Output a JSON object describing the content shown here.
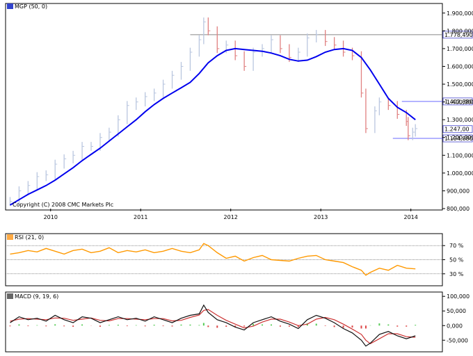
{
  "panels": {
    "price": {
      "title": "MGP (50, 0)",
      "copyright": "Copyright (C) 2008 CMC Markets Plc"
    },
    "rsi": {
      "title": "RSI (21, 0)"
    },
    "macd": {
      "title": "MACD (9, 19, 6)"
    }
  },
  "chart_data": [
    {
      "type": "line",
      "subtype": "price bars with moving average",
      "title": "MGP (50, 0)",
      "annotation": "Copyright (C) 2008 CMC Markets Plc",
      "x_tick_labels": [
        "2010",
        "2011",
        "2012",
        "2013",
        "2014"
      ],
      "y_tick_labels": [
        "1.900,000",
        "1.800,000",
        "1.700,000",
        "1.600,000",
        "1.500,000",
        "1.400,000",
        "1.300,000",
        "1.200,000",
        "1.100,000",
        "1.000,000",
        "900,000",
        "800,000"
      ],
      "ylim": [
        800,
        1950
      ],
      "y_scale": 1000,
      "grid": false,
      "colors": {
        "bars": "#b9c6df",
        "bars_down": "#e08080",
        "ma": "#0000ee",
        "hline": "#888888",
        "hline_blue": "#6a6aff"
      },
      "horizontal_lines": [
        {
          "label": "1.778,490",
          "value": 1778.49
        },
        {
          "label": "1.402,880",
          "value": 1402.88
        },
        {
          "label": "1.194,880",
          "value": 1194.88
        }
      ],
      "last_value_label": "1.247,00",
      "series": [
        {
          "role": "price",
          "x": [
            2009.55,
            2009.65,
            2009.75,
            2009.85,
            2009.95,
            2010.05,
            2010.15,
            2010.25,
            2010.35,
            2010.45,
            2010.55,
            2010.65,
            2010.75,
            2010.85,
            2010.95,
            2011.05,
            2011.15,
            2011.25,
            2011.35,
            2011.45,
            2011.55,
            2011.65,
            2011.7,
            2011.75,
            2011.85,
            2011.95,
            2012.05,
            2012.15,
            2012.25,
            2012.35,
            2012.45,
            2012.55,
            2012.65,
            2012.75,
            2012.85,
            2012.95,
            2013.05,
            2013.15,
            2013.25,
            2013.35,
            2013.45,
            2013.5,
            2013.6,
            2013.65,
            2013.75,
            2013.85,
            2013.95,
            2013.97,
            2014.02,
            2014.05
          ],
          "values": [
            840,
            900,
            930,
            980,
            990,
            1050,
            1080,
            1100,
            1150,
            1150,
            1200,
            1230,
            1300,
            1380,
            1400,
            1430,
            1450,
            1500,
            1550,
            1600,
            1680,
            1750,
            1850,
            1800,
            1700,
            1720,
            1660,
            1600,
            1680,
            1700,
            1750,
            1700,
            1650,
            1680,
            1760,
            1780,
            1740,
            1720,
            1680,
            1660,
            1450,
            1250,
            1350,
            1400,
            1380,
            1330,
            1290,
            1210,
            1230,
            1250
          ]
        },
        {
          "role": "moving average",
          "x": [
            2009.55,
            2009.65,
            2009.75,
            2009.85,
            2009.95,
            2010.05,
            2010.15,
            2010.25,
            2010.35,
            2010.45,
            2010.55,
            2010.65,
            2010.75,
            2010.85,
            2010.95,
            2011.05,
            2011.15,
            2011.25,
            2011.35,
            2011.45,
            2011.55,
            2011.65,
            2011.75,
            2011.85,
            2011.95,
            2012.05,
            2012.15,
            2012.25,
            2012.35,
            2012.45,
            2012.55,
            2012.65,
            2012.75,
            2012.85,
            2012.95,
            2013.05,
            2013.15,
            2013.25,
            2013.35,
            2013.45,
            2013.55,
            2013.65,
            2013.75,
            2013.85,
            2013.95,
            2014.05
          ],
          "values": [
            820,
            850,
            880,
            905,
            930,
            960,
            995,
            1030,
            1070,
            1105,
            1140,
            1180,
            1220,
            1260,
            1300,
            1345,
            1385,
            1420,
            1450,
            1480,
            1510,
            1560,
            1620,
            1660,
            1690,
            1700,
            1695,
            1690,
            1685,
            1675,
            1660,
            1640,
            1630,
            1635,
            1655,
            1680,
            1695,
            1700,
            1690,
            1650,
            1580,
            1500,
            1420,
            1370,
            1340,
            1300
          ]
        }
      ]
    },
    {
      "type": "line",
      "title": "RSI (21, 0)",
      "y_tick_labels": [
        "70 %",
        "50 %",
        "30 %"
      ],
      "ylim": [
        15,
        85
      ],
      "grid": false,
      "colors": {
        "line": "#ff9900",
        "ref": "#666666"
      },
      "reference_levels": [
        70,
        50,
        30
      ],
      "series": [
        {
          "role": "rsi",
          "x": [
            2009.55,
            2009.65,
            2009.75,
            2009.85,
            2009.95,
            2010.05,
            2010.15,
            2010.25,
            2010.35,
            2010.45,
            2010.55,
            2010.65,
            2010.75,
            2010.85,
            2010.95,
            2011.05,
            2011.15,
            2011.25,
            2011.35,
            2011.45,
            2011.55,
            2011.65,
            2011.7,
            2011.75,
            2011.85,
            2011.95,
            2012.05,
            2012.15,
            2012.25,
            2012.35,
            2012.45,
            2012.55,
            2012.65,
            2012.75,
            2012.85,
            2012.95,
            2013.05,
            2013.15,
            2013.25,
            2013.35,
            2013.45,
            2013.5,
            2013.55,
            2013.65,
            2013.75,
            2013.85,
            2013.95,
            2014.05
          ],
          "values": [
            58,
            60,
            63,
            61,
            66,
            62,
            58,
            63,
            65,
            60,
            62,
            67,
            60,
            63,
            61,
            64,
            60,
            62,
            66,
            62,
            60,
            64,
            73,
            70,
            60,
            52,
            55,
            48,
            53,
            56,
            50,
            49,
            48,
            52,
            55,
            56,
            50,
            48,
            46,
            40,
            35,
            28,
            32,
            38,
            35,
            42,
            38,
            37
          ]
        }
      ]
    },
    {
      "type": "line",
      "title": "MACD (9, 19, 6)",
      "y_tick_labels": [
        "100,000",
        "50,000",
        "0,000",
        "-50,000"
      ],
      "ylim": [
        -85,
        110
      ],
      "grid": false,
      "colors": {
        "macd": "#111111",
        "signal": "#cc3333",
        "hist_pos": "#55cc55",
        "hist_neg": "#dd4444"
      },
      "series": [
        {
          "name": "MACD",
          "x": [
            2009.55,
            2009.65,
            2009.75,
            2009.85,
            2009.95,
            2010.05,
            2010.15,
            2010.25,
            2010.35,
            2010.45,
            2010.55,
            2010.65,
            2010.75,
            2010.85,
            2010.95,
            2011.05,
            2011.15,
            2011.25,
            2011.35,
            2011.45,
            2011.55,
            2011.65,
            2011.7,
            2011.75,
            2011.85,
            2011.95,
            2012.05,
            2012.15,
            2012.25,
            2012.35,
            2012.45,
            2012.55,
            2012.65,
            2012.75,
            2012.85,
            2012.95,
            2013.05,
            2013.15,
            2013.25,
            2013.35,
            2013.45,
            2013.5,
            2013.55,
            2013.65,
            2013.75,
            2013.85,
            2013.95,
            2014.05
          ],
          "values": [
            10,
            30,
            20,
            25,
            15,
            35,
            20,
            10,
            30,
            25,
            10,
            20,
            30,
            20,
            25,
            15,
            30,
            20,
            10,
            25,
            35,
            40,
            70,
            45,
            20,
            10,
            -5,
            -15,
            10,
            20,
            30,
            15,
            5,
            -10,
            20,
            35,
            25,
            10,
            -10,
            -25,
            -50,
            -70,
            -60,
            -30,
            -20,
            -35,
            -45,
            -35
          ]
        },
        {
          "name": "Signal",
          "x": [
            2009.55,
            2009.65,
            2009.75,
            2009.85,
            2009.95,
            2010.05,
            2010.15,
            2010.25,
            2010.35,
            2010.45,
            2010.55,
            2010.65,
            2010.75,
            2010.85,
            2010.95,
            2011.05,
            2011.15,
            2011.25,
            2011.35,
            2011.45,
            2011.55,
            2011.65,
            2011.7,
            2011.75,
            2011.85,
            2011.95,
            2012.05,
            2012.15,
            2012.25,
            2012.35,
            2012.45,
            2012.55,
            2012.65,
            2012.75,
            2012.85,
            2012.95,
            2013.05,
            2013.15,
            2013.25,
            2013.35,
            2013.45,
            2013.5,
            2013.55,
            2013.65,
            2013.75,
            2013.85,
            2013.95,
            2014.05
          ],
          "values": [
            15,
            22,
            24,
            22,
            20,
            26,
            25,
            18,
            22,
            26,
            18,
            16,
            24,
            24,
            22,
            20,
            24,
            24,
            16,
            18,
            28,
            36,
            52,
            55,
            35,
            18,
            5,
            -8,
            -2,
            12,
            22,
            22,
            12,
            0,
            5,
            22,
            28,
            20,
            5,
            -12,
            -30,
            -50,
            -62,
            -45,
            -28,
            -28,
            -38,
            -40
          ]
        }
      ]
    }
  ]
}
